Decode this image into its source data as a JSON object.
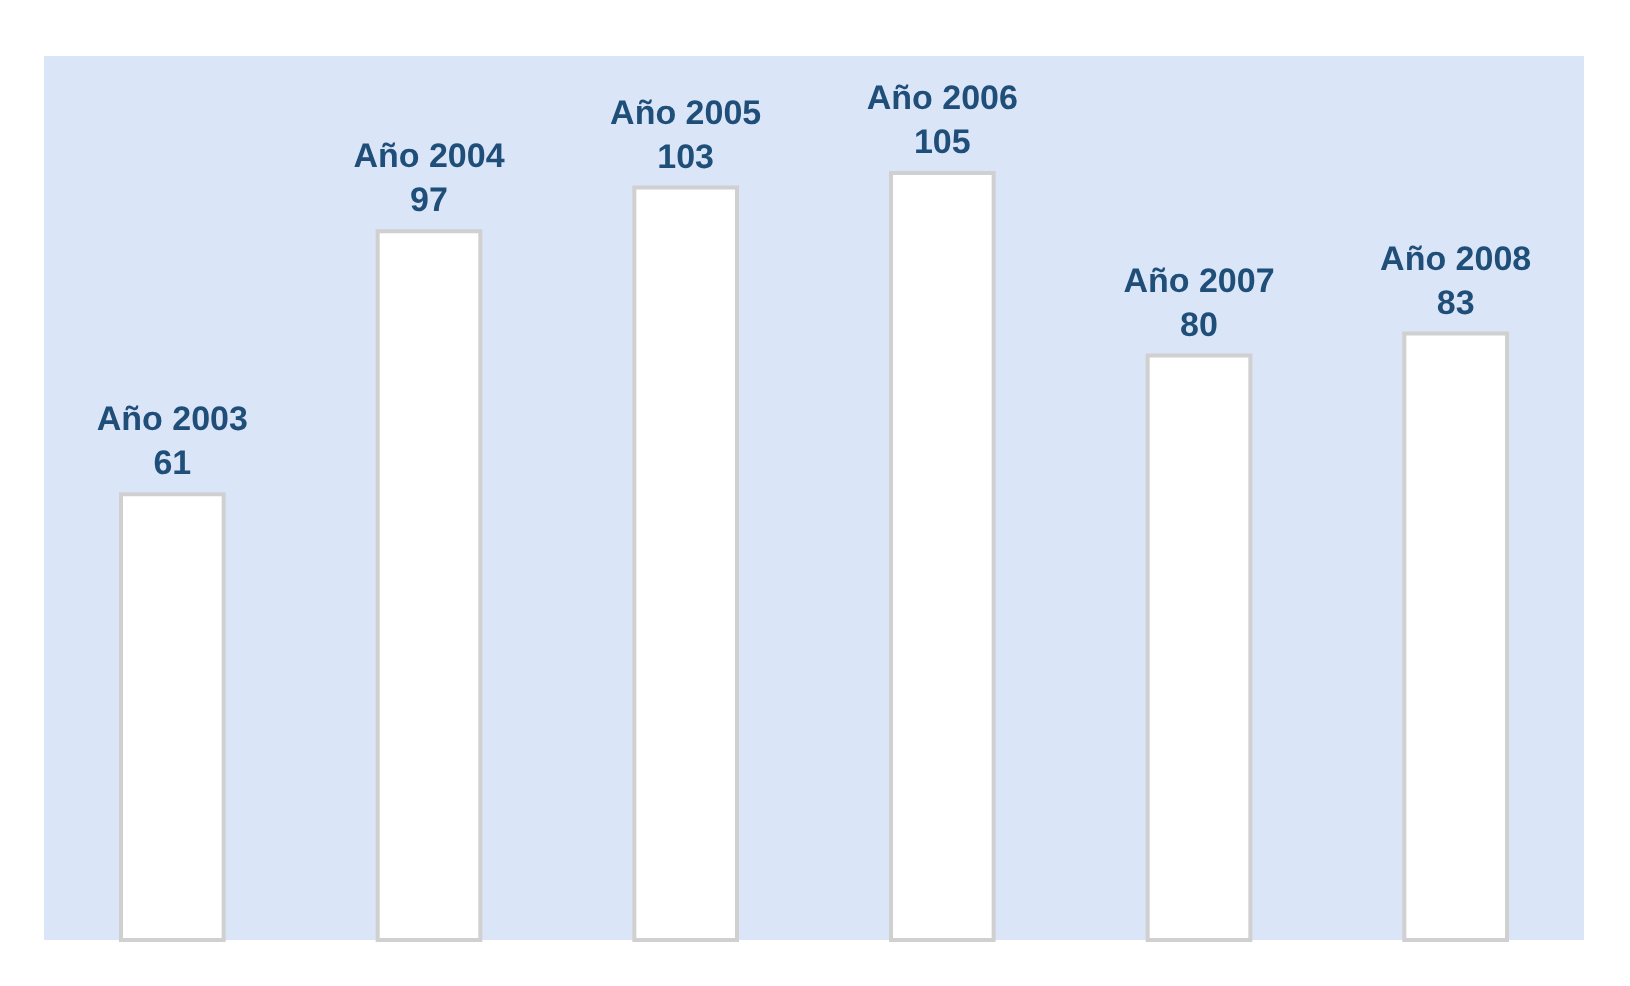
{
  "chart_data": {
    "type": "bar",
    "categories": [
      "Año 2003",
      "Año 2004",
      "Año 2005",
      "Año 2006",
      "Año 2007",
      "Año 2008"
    ],
    "values": [
      61,
      97,
      103,
      105,
      80,
      83
    ],
    "color": "#ffffff",
    "ylim": [
      0,
      121
    ],
    "data_labels": true,
    "tick_labels": false,
    "grid": false
  }
}
